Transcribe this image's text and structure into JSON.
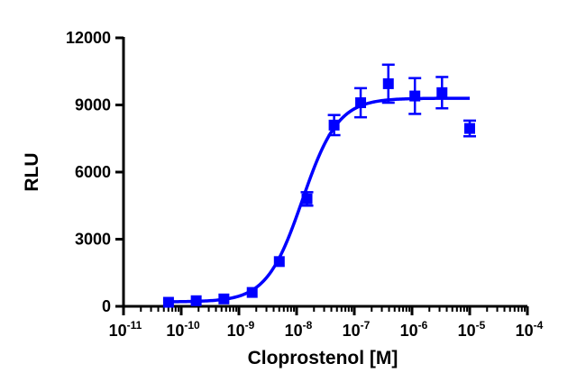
{
  "chart_data": {
    "type": "scatter",
    "title": "",
    "xlabel": "Cloprostenol [M]",
    "ylabel": "RLU",
    "x_scale": "log10",
    "xlim_exponent": [
      -11,
      -4
    ],
    "ylim": [
      0,
      12000
    ],
    "x_ticks": [
      {
        "base": "10",
        "exp": "-11"
      },
      {
        "base": "10",
        "exp": "-10"
      },
      {
        "base": "10",
        "exp": "-9"
      },
      {
        "base": "10",
        "exp": "-8"
      },
      {
        "base": "10",
        "exp": "-7"
      },
      {
        "base": "10",
        "exp": "-6"
      },
      {
        "base": "10",
        "exp": "-5"
      },
      {
        "base": "10",
        "exp": "-4"
      }
    ],
    "y_ticks": [
      "0",
      "3000",
      "6000",
      "9000",
      "12000"
    ],
    "color": "#0000ff",
    "series": [
      {
        "name": "Cloprostenol",
        "marker": "square",
        "points": [
          {
            "log_x": -10.22,
            "y": 180,
            "err": 0
          },
          {
            "log_x": -9.74,
            "y": 250,
            "err": 0
          },
          {
            "log_x": -9.26,
            "y": 330,
            "err": 0
          },
          {
            "log_x": -8.77,
            "y": 620,
            "err": 0
          },
          {
            "log_x": -8.3,
            "y": 2000,
            "err": 0
          },
          {
            "log_x": -7.82,
            "y": 4800,
            "err": 300
          },
          {
            "log_x": -7.35,
            "y": 8100,
            "err": 450
          },
          {
            "log_x": -6.89,
            "y": 9100,
            "err": 650
          },
          {
            "log_x": -6.41,
            "y": 9950,
            "err": 850
          },
          {
            "log_x": -5.95,
            "y": 9400,
            "err": 800
          },
          {
            "log_x": -5.48,
            "y": 9550,
            "err": 700
          },
          {
            "log_x": -5.0,
            "y": 7950,
            "err": 350
          }
        ]
      }
    ],
    "fit_curve": {
      "model": "sigmoidal dose-response",
      "bottom": 200,
      "top": 9300,
      "log_ec50": -7.9,
      "hill_slope": 1.4,
      "log_x_range": [
        -10.22,
        -5.0
      ]
    }
  }
}
